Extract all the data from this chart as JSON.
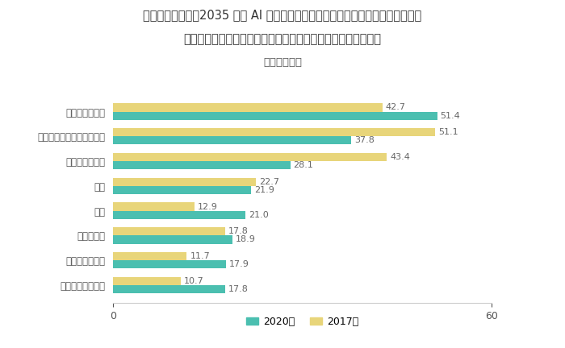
{
  "title_line1": "現在の小学生が、2035 年の AI 時代にビジネスパーソンとして活躍するために、",
  "title_line2": "今から取り組んでおいたほうが良いことは何だと思いますか？",
  "subtitle": "（複数選択）",
  "categories": [
    "プログラミング",
    "語学（英語・中国語など）",
    "国語（読解力）",
    "算数",
    "道徳",
    "理科・科学",
    "運動・スポーツ",
    "自然遊び、外遊び"
  ],
  "values_2020": [
    51.4,
    37.8,
    28.1,
    21.9,
    21.0,
    18.9,
    17.9,
    17.8
  ],
  "values_2017": [
    42.7,
    51.1,
    43.4,
    22.7,
    12.9,
    17.8,
    11.7,
    10.7
  ],
  "color_2020": "#4BBFB0",
  "color_2017": "#E8D57A",
  "legend_2020": "2020年",
  "legend_2017": "2017年",
  "xlim": [
    0,
    60
  ],
  "xticks": [
    0,
    60
  ],
  "bar_height": 0.33,
  "background_color": "#ffffff",
  "title_fontsize": 10.5,
  "subtitle_fontsize": 9.5,
  "label_fontsize": 8.5,
  "tick_fontsize": 9,
  "value_fontsize": 8
}
